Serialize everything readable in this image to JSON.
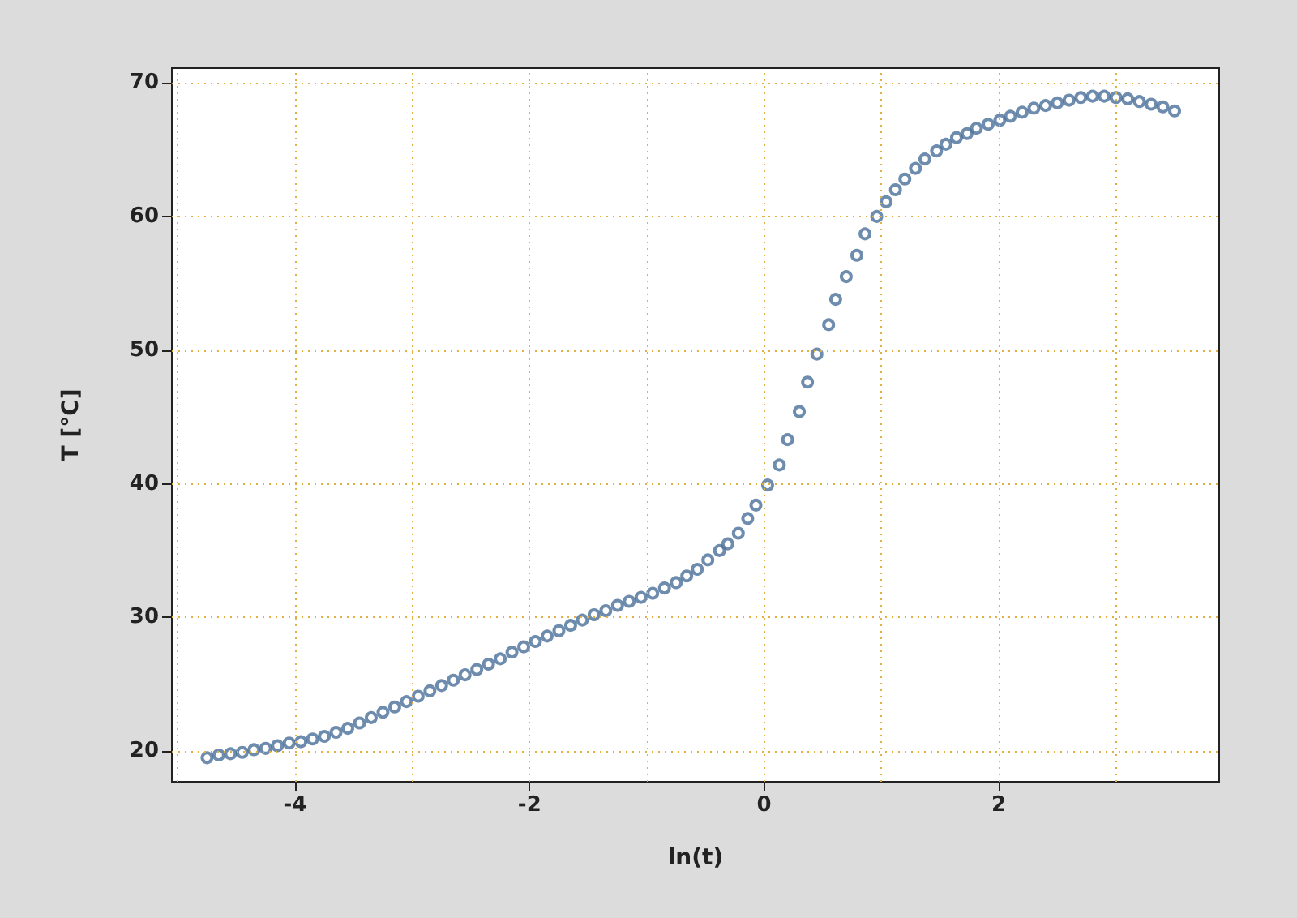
{
  "chart_data": {
    "type": "scatter",
    "xlabel": "ln(t)",
    "ylabel": "T [°C]",
    "xlim": [
      -5.05,
      3.88
    ],
    "ylim": [
      17.7,
      71.1
    ],
    "xticks": [
      {
        "value": -5,
        "label": null
      },
      -4,
      {
        "value": -3,
        "label": null
      },
      -2,
      {
        "value": -1,
        "label": null
      },
      0,
      {
        "value": 1,
        "label": null
      },
      2,
      {
        "value": 3,
        "label": null
      }
    ],
    "yticks": [
      20,
      30,
      40,
      50,
      60,
      70
    ],
    "grid": true,
    "marker": "circle",
    "series": [
      {
        "color": "#4a6f98",
        "x": [
          -4.75,
          -4.65,
          -4.55,
          -4.45,
          -4.35,
          -4.25,
          -4.15,
          -4.05,
          -3.95,
          -3.85,
          -3.75,
          -3.65,
          -3.55,
          -3.45,
          -3.35,
          -3.25,
          -3.15,
          -3.05,
          -2.95,
          -2.85,
          -2.75,
          -2.65,
          -2.55,
          -2.45,
          -2.35,
          -2.25,
          -2.15,
          -2.05,
          -1.95,
          -1.85,
          -1.75,
          -1.65,
          -1.55,
          -1.45,
          -1.35,
          -1.25,
          -1.15,
          -1.05,
          -0.95,
          -0.85,
          -0.75,
          -0.66,
          -0.57,
          -0.48,
          -0.38,
          -0.31,
          -0.22,
          -0.14,
          -0.07,
          0.03,
          0.13,
          0.2,
          0.3,
          0.37,
          0.45,
          0.55,
          0.61,
          0.7,
          0.79,
          0.86,
          0.96,
          1.04,
          1.12,
          1.2,
          1.29,
          1.37,
          1.47,
          1.55,
          1.64,
          1.73,
          1.81,
          1.91,
          2.01,
          2.1,
          2.2,
          2.3,
          2.4,
          2.5,
          2.6,
          2.7,
          2.8,
          2.9,
          3.0,
          3.1,
          3.2,
          3.3,
          3.4,
          3.5
        ],
        "values": [
          19.5,
          19.7,
          19.8,
          19.9,
          20.1,
          20.2,
          20.4,
          20.6,
          20.7,
          20.9,
          21.1,
          21.4,
          21.7,
          22.1,
          22.5,
          22.9,
          23.3,
          23.7,
          24.1,
          24.5,
          24.9,
          25.3,
          25.7,
          26.1,
          26.5,
          26.9,
          27.4,
          27.8,
          28.2,
          28.6,
          29.0,
          29.4,
          29.8,
          30.2,
          30.5,
          30.9,
          31.2,
          31.5,
          31.8,
          32.2,
          32.6,
          33.1,
          33.6,
          34.3,
          35.0,
          35.5,
          36.3,
          37.4,
          38.4,
          39.9,
          41.4,
          43.3,
          45.4,
          47.6,
          49.7,
          51.9,
          53.8,
          55.5,
          57.1,
          58.7,
          60.0,
          61.1,
          62.0,
          62.8,
          63.6,
          64.3,
          64.9,
          65.4,
          65.9,
          66.2,
          66.6,
          66.9,
          67.2,
          67.5,
          67.8,
          68.1,
          68.3,
          68.5,
          68.7,
          68.9,
          69.0,
          69.0,
          68.9,
          68.8,
          68.6,
          68.4,
          68.2,
          67.9
        ]
      }
    ]
  }
}
